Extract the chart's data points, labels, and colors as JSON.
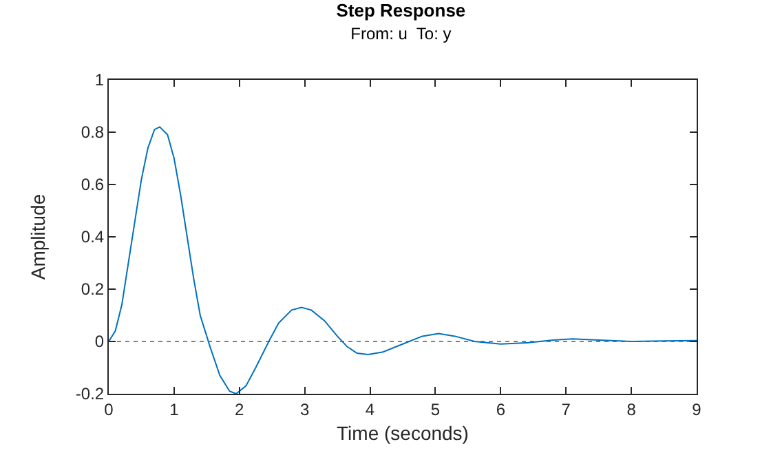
{
  "chart_data": {
    "type": "line",
    "title": "Step Response",
    "subtitle": "From: u  To: y",
    "xlabel": "Time (seconds)",
    "ylabel": "Amplitude",
    "x": [
      0,
      0.1,
      0.2,
      0.3,
      0.4,
      0.5,
      0.6,
      0.7,
      0.78,
      0.9,
      1.0,
      1.1,
      1.2,
      1.3,
      1.4,
      1.55,
      1.7,
      1.85,
      1.95,
      2.1,
      2.25,
      2.45,
      2.6,
      2.8,
      2.95,
      3.1,
      3.3,
      3.5,
      3.65,
      3.8,
      3.97,
      4.2,
      4.5,
      4.8,
      5.05,
      5.3,
      5.6,
      6.0,
      6.4,
      6.8,
      7.1,
      7.5,
      8.0,
      8.5,
      9.0
    ],
    "series": [
      {
        "color": "#0072bd",
        "values": [
          0,
          0.04,
          0.14,
          0.3,
          0.46,
          0.62,
          0.74,
          0.81,
          0.82,
          0.79,
          0.7,
          0.56,
          0.4,
          0.24,
          0.1,
          -0.02,
          -0.13,
          -0.19,
          -0.2,
          -0.17,
          -0.1,
          0.0,
          0.07,
          0.12,
          0.13,
          0.12,
          0.08,
          0.02,
          -0.02,
          -0.045,
          -0.05,
          -0.04,
          -0.01,
          0.02,
          0.03,
          0.02,
          0.0,
          -0.01,
          -0.005,
          0.005,
          0.01,
          0.005,
          0,
          0.002,
          0.003
        ]
      }
    ],
    "xlim": [
      0,
      9
    ],
    "xticks": [
      0,
      1,
      2,
      3,
      4,
      5,
      6,
      7,
      8,
      9
    ],
    "ylim": [
      -0.2,
      1
    ],
    "yticks": [
      -0.2,
      0,
      0.2,
      0.4,
      0.6,
      0.8,
      1
    ],
    "ref_lines": [
      {
        "axis": "y",
        "value": 0,
        "color": "#7f7f7f",
        "line_style": "dotted"
      }
    ],
    "grid": false,
    "marker": "none",
    "line_style": "solid"
  }
}
